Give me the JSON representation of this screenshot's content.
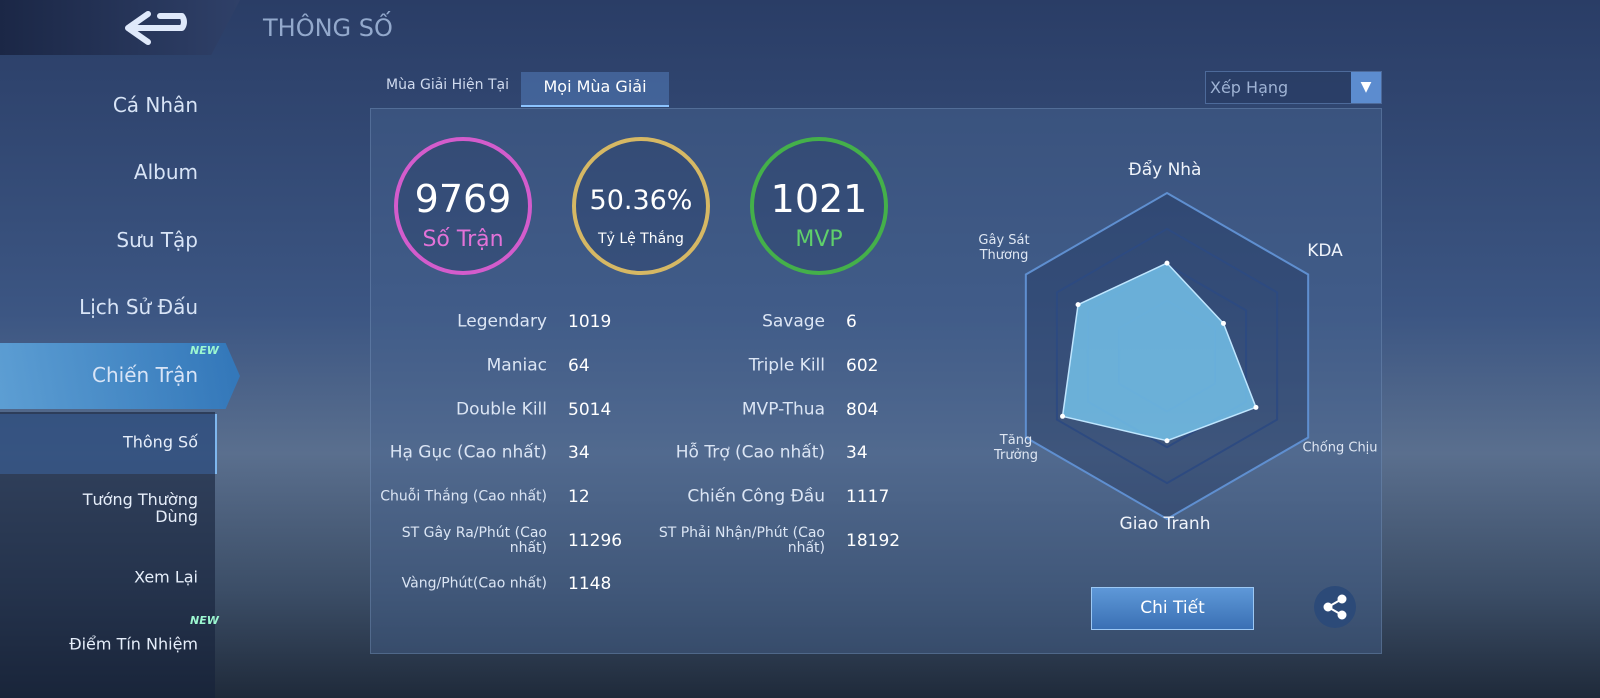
{
  "header": {
    "title": "THÔNG SỐ"
  },
  "sidebar": {
    "items": [
      "Cá Nhân",
      "Album",
      "Sưu Tập",
      "Lịch Sử Đấu",
      "Chiến Trận"
    ],
    "subitems": [
      "Thông Số",
      "Tướng Thường Dùng",
      "Xem Lại",
      "Điểm Tín Nhiệm"
    ],
    "badges": [
      "NEW",
      "NEW"
    ]
  },
  "tabs": [
    "Mùa Giải Hiện Tại",
    "Mọi Mùa Giải"
  ],
  "dropdown": "Xếp Hạng",
  "summary": [
    {
      "value": 9769,
      "label": "Số Trận"
    },
    {
      "value": "50.36%",
      "label": "Tỷ Lệ Thắng"
    },
    {
      "value": 1021,
      "label": "MVP"
    }
  ],
  "stats": {
    "left": [
      [
        "Legendary",
        1019
      ],
      [
        "Maniac",
        64
      ],
      [
        "Double Kill",
        5014
      ],
      [
        "Hạ Gục (Cao nhất)",
        34
      ],
      [
        "Chuỗi Thắng (Cao nhất)",
        12
      ],
      [
        "ST Gây Ra/Phút (Cao nhất)",
        11296
      ],
      [
        "Vàng/Phút(Cao nhất)",
        1148
      ]
    ],
    "right": [
      [
        "Savage",
        6
      ],
      [
        "Triple Kill",
        602
      ],
      [
        "MVP-Thua",
        804
      ],
      [
        "Hỗ Trợ (Cao nhất)",
        34
      ],
      [
        "Chiến Công Đầu",
        1117
      ],
      [
        "ST Phải Nhận/Phút (Cao nhất)",
        18192
      ]
    ]
  },
  "radar": {
    "labels": [
      "Đẩy Nhà",
      "KDA",
      "Chống Chịu",
      "Giao Tranh",
      "Tăng Trưởng",
      "Gây Sát Thương"
    ],
    "values": [
      0.57,
      0.4,
      0.63,
      0.52,
      0.74,
      0.63
    ],
    "rlim": [
      0,
      1
    ]
  },
  "button": "Chi Tiết"
}
